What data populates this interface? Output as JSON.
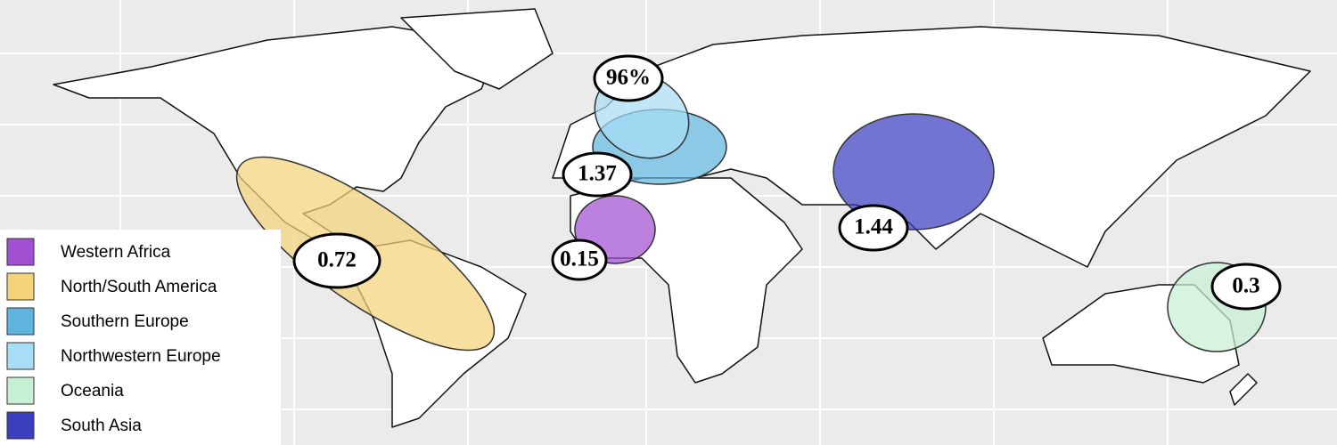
{
  "legend": {
    "entries": [
      {
        "name": "Western Africa",
        "color": "#a24fd1",
        "label": "0.15"
      },
      {
        "name": "North/South America",
        "color": "#f4d37a",
        "label": "0.72"
      },
      {
        "name": "Southern Europe",
        "color": "#5fb4dd",
        "label": "1.37"
      },
      {
        "name": "Northwestern Europe",
        "color": "#a7ddf5",
        "label": "96%"
      },
      {
        "name": "Oceania",
        "color": "#c6f0d2",
        "label": "0.3"
      },
      {
        "name": "South Asia",
        "color": "#3b3fbf",
        "label": "1.44"
      }
    ]
  }
}
